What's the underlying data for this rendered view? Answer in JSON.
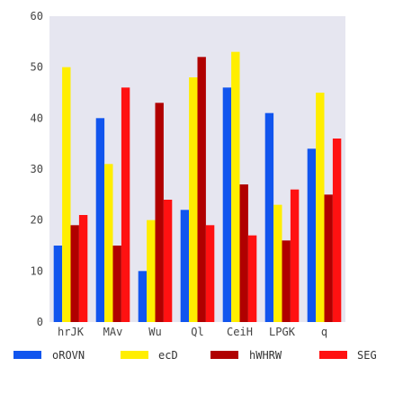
{
  "chart_data": {
    "type": "bar",
    "title": "",
    "xlabel": "",
    "ylabel": "",
    "ylim": [
      0,
      60
    ],
    "yticks": [
      0,
      10,
      20,
      30,
      40,
      50,
      60
    ],
    "grid": false,
    "legend_position": "bottom",
    "background_color": "#e6e6f0",
    "categories": [
      "hrJK",
      "MAv",
      "Wu",
      "Ql",
      "CeiH",
      "LPGK",
      "q"
    ],
    "series": [
      {
        "name": "oROVN",
        "color": "#1155ee",
        "values": [
          15,
          40,
          10,
          22,
          46,
          41,
          34
        ]
      },
      {
        "name": "ecD",
        "color": "#ffee00",
        "values": [
          50,
          31,
          20,
          48,
          53,
          23,
          45
        ]
      },
      {
        "name": "hWHRW",
        "color": "#b00000",
        "values": [
          19,
          15,
          43,
          52,
          27,
          16,
          25
        ]
      },
      {
        "name": "SEG",
        "color": "#ff1111",
        "values": [
          21,
          46,
          24,
          19,
          17,
          26,
          36
        ]
      }
    ]
  }
}
